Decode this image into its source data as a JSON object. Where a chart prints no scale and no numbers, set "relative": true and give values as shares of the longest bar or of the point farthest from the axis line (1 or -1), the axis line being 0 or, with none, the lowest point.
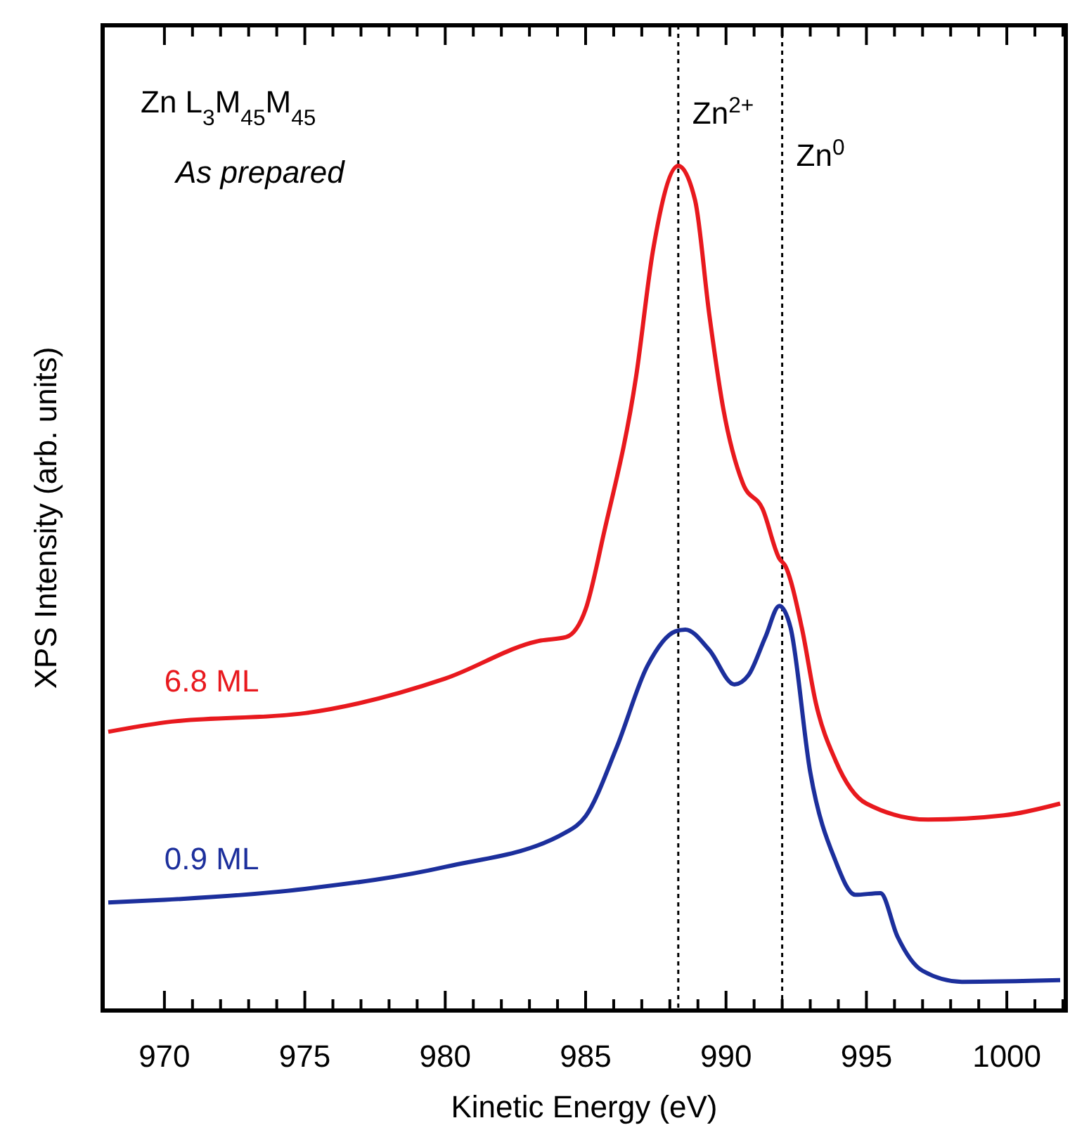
{
  "chart_data": {
    "type": "line",
    "relative": true,
    "xlabel": "Kinetic Energy (eV)",
    "ylabel": "XPS Intensity (arb. units)",
    "grid": false,
    "line_style": "solid",
    "marker": "none",
    "xlim": [
      967.8,
      1002.1
    ],
    "xticks": [
      970,
      {
        "value": 971,
        "label": null
      },
      {
        "value": 972,
        "label": null
      },
      {
        "value": 973,
        "label": null
      },
      {
        "value": 974,
        "label": null
      },
      975,
      {
        "value": 976,
        "label": null
      },
      {
        "value": 977,
        "label": null
      },
      {
        "value": 978,
        "label": null
      },
      {
        "value": 979,
        "label": null
      },
      980,
      {
        "value": 981,
        "label": null
      },
      {
        "value": 982,
        "label": null
      },
      {
        "value": 983,
        "label": null
      },
      {
        "value": 984,
        "label": null
      },
      985,
      {
        "value": 986,
        "label": null
      },
      {
        "value": 987,
        "label": null
      },
      {
        "value": 988,
        "label": null
      },
      {
        "value": 989,
        "label": null
      },
      990,
      {
        "value": 991,
        "label": null
      },
      {
        "value": 992,
        "label": null
      },
      {
        "value": 993,
        "label": null
      },
      {
        "value": 994,
        "label": null
      },
      995,
      {
        "value": 996,
        "label": null
      },
      {
        "value": 997,
        "label": null
      },
      {
        "value": 998,
        "label": null
      },
      {
        "value": 999,
        "label": null
      },
      1000,
      {
        "value": 1001,
        "label": null
      },
      {
        "value": 1002,
        "label": null
      }
    ],
    "annotations": [
      "Zn L$_{3}$M$_{45}$M$_{45}$",
      "As prepared"
    ],
    "ref_lines": [
      {
        "axis": "x",
        "value": 988.3,
        "label": "Zn$^{2+}$",
        "color": "#000000",
        "line_style": "dotted"
      },
      {
        "axis": "x",
        "value": 992.0,
        "label": "Zn$^{0}$",
        "color": "#000000",
        "line_style": "dotted"
      }
    ],
    "series": [
      {
        "name": "6.8 ML",
        "color": "#e8191e",
        "x": [
          968.0,
          970,
          975,
          980,
          983.4,
          984.3,
          985,
          985.65,
          986.8,
          987.4,
          988.3,
          988.9,
          989.4,
          989.9,
          990.6,
          991.3,
          991.9,
          992.1,
          992.7,
          993.2,
          993.9,
          995.0,
          997.2,
          999.9,
          1001.9
        ],
        "values": [
          0.33,
          0.341,
          0.352,
          0.393,
          0.438,
          0.442,
          0.475,
          0.565,
          0.751,
          0.9,
          1.0,
          0.959,
          0.825,
          0.713,
          0.624,
          0.594,
          0.535,
          0.527,
          0.453,
          0.364,
          0.296,
          0.245,
          0.226,
          0.231,
          0.245
        ]
      },
      {
        "name": "0.9 ML",
        "color": "#1c2f9c",
        "x": [
          968.0,
          970,
          975,
          980,
          984.3,
          985,
          986.1,
          987.2,
          988.2,
          988.55,
          989.4,
          990.3,
          990.8,
          991.4,
          991.9,
          992.3,
          993.0,
          993.9,
          994.6,
          995.5,
          996.1,
          997.0,
          998.4,
          1001.9
        ],
        "values": [
          0.128,
          0.131,
          0.144,
          0.17,
          0.211,
          0.23,
          0.311,
          0.408,
          0.449,
          0.451,
          0.427,
          0.386,
          0.397,
          0.442,
          0.479,
          0.453,
          0.282,
          0.177,
          0.137,
          0.139,
          0.088,
          0.047,
          0.034,
          0.036
        ]
      }
    ]
  }
}
